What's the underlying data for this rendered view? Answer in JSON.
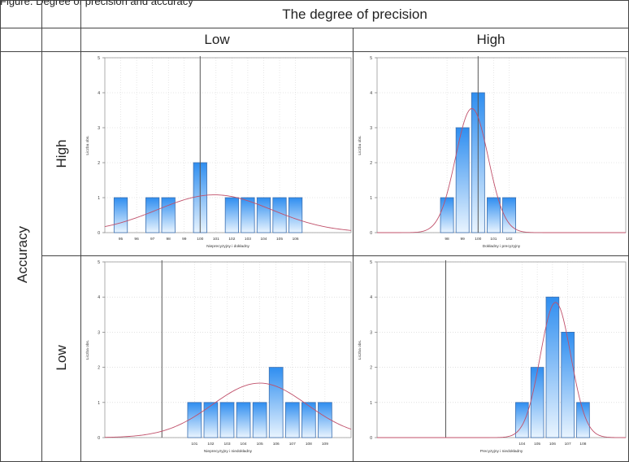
{
  "figure": {
    "caption": "Figure. Degree of precision and accuracy",
    "column_header": "The degree of precision",
    "col_low": "Low",
    "col_high": "High",
    "row_header": "Accuracy",
    "row_high": "High",
    "row_low": "Low"
  },
  "colors": {
    "bar_top": "#2f8ef0",
    "bar_bottom": "#e9f4fe",
    "bar_stroke": "#3b6fb0",
    "curve": "#c0506a",
    "grid": "#cfcfcf",
    "true_line": "#555555"
  },
  "chart_data": [
    {
      "type": "bar",
      "panel": "low-precision-high-accuracy",
      "xlabel": "Nieprecyzyjny i dokładny",
      "ylabel": "Liczba obs.",
      "categories": [
        "95",
        "96",
        "97",
        "98",
        "99",
        "100",
        "101",
        "102",
        "103",
        "104",
        "105",
        "106"
      ],
      "values": [
        1,
        0,
        1,
        1,
        0,
        2,
        0,
        1,
        1,
        1,
        1,
        1
      ],
      "tick_labels": [
        "95",
        "96",
        "97",
        "98",
        "99",
        "100",
        "101",
        "102",
        "103",
        "104",
        "105",
        "106"
      ],
      "ylim": [
        0,
        5
      ],
      "yticks": [
        0,
        1,
        2,
        3,
        4,
        5
      ],
      "reference_value": "100",
      "normal_fit": {
        "mean": 100.9,
        "sd": 3.6,
        "peak": 1.08
      },
      "x_range": [
        94.0,
        109.5
      ],
      "grid": true
    },
    {
      "type": "bar",
      "panel": "high-precision-high-accuracy",
      "xlabel": "Dokładny i precyzyjny",
      "ylabel": "Liczba obs.",
      "categories": [
        "98",
        "99",
        "100",
        "101",
        "102"
      ],
      "values": [
        1,
        3,
        4,
        1,
        1
      ],
      "tick_labels": [
        "98",
        "99",
        "100",
        "101",
        "102"
      ],
      "ylim": [
        0,
        5
      ],
      "yticks": [
        0,
        1,
        2,
        3,
        4,
        5
      ],
      "reference_value": "100",
      "normal_fit": {
        "mean": 99.6,
        "sd": 1.05,
        "peak": 3.55
      },
      "x_range": [
        93.5,
        109.5
      ],
      "grid": true
    },
    {
      "type": "bar",
      "panel": "low-precision-low-accuracy",
      "xlabel": "Nieprecyzyjny i niedokładny",
      "ylabel": "Liczba obs.",
      "categories": [
        "101",
        "102",
        "103",
        "104",
        "105",
        "106",
        "107",
        "108",
        "109"
      ],
      "values": [
        1,
        1,
        1,
        1,
        1,
        2,
        1,
        1,
        1
      ],
      "tick_labels": [
        "101",
        "102",
        "103",
        "104",
        "105",
        "106",
        "107",
        "108",
        "109"
      ],
      "ylim": [
        0,
        5
      ],
      "yticks": [
        0,
        1,
        2,
        3,
        4,
        5
      ],
      "reference_value": "99",
      "normal_fit": {
        "mean": 105.0,
        "sd": 2.9,
        "peak": 1.55
      },
      "x_range": [
        95.5,
        110.6
      ],
      "grid": true
    },
    {
      "type": "bar",
      "panel": "high-precision-low-accuracy",
      "xlabel": "Precyzyjny i niedokładny",
      "ylabel": "Liczba obs.",
      "categories": [
        "104",
        "105",
        "106",
        "107",
        "108"
      ],
      "values": [
        1,
        2,
        4,
        3,
        1
      ],
      "tick_labels": [
        "104",
        "105",
        "106",
        "107",
        "108"
      ],
      "ylim": [
        0,
        5
      ],
      "yticks": [
        0,
        1,
        2,
        3,
        4,
        5
      ],
      "reference_value": "99",
      "normal_fit": {
        "mean": 106.2,
        "sd": 1.0,
        "peak": 3.85
      },
      "x_range": [
        94.5,
        110.8
      ],
      "grid": true
    }
  ]
}
